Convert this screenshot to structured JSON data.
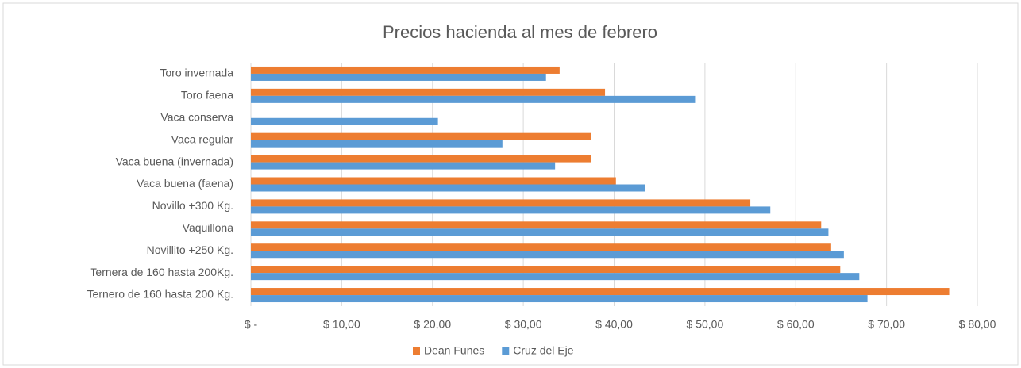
{
  "chart_data": {
    "type": "bar",
    "orientation": "horizontal",
    "title": "Precios hacienda al mes de febrero",
    "categories": [
      "Toro invernada",
      "Toro faena",
      "Vaca conserva",
      "Vaca regular",
      "Vaca buena (invernada)",
      "Vaca buena (faena)",
      "Novillo +300 Kg.",
      "Vaquillona",
      "Novillito +250 Kg.",
      "Ternera de 160 hasta 200Kg.",
      "Ternero de 160 hasta 200 Kg."
    ],
    "series": [
      {
        "name": "Dean Funes",
        "color": "#ed7d31",
        "values": [
          34.0,
          39.0,
          null,
          37.5,
          37.5,
          40.2,
          55.0,
          62.8,
          63.9,
          64.9,
          76.9
        ]
      },
      {
        "name": "Cruz del Eje",
        "color": "#5b9bd5",
        "values": [
          32.5,
          49.0,
          20.6,
          27.7,
          33.5,
          43.4,
          57.2,
          63.6,
          65.3,
          67.0,
          67.9
        ]
      }
    ],
    "xlim": [
      0,
      80
    ],
    "xticks": [
      {
        "value": 0,
        "label": "$ -"
      },
      {
        "value": 10,
        "label": "$ 10,00"
      },
      {
        "value": 20,
        "label": "$ 20,00"
      },
      {
        "value": 30,
        "label": "$ 30,00"
      },
      {
        "value": 40,
        "label": "$ 40,00"
      },
      {
        "value": 50,
        "label": "$ 50,00"
      },
      {
        "value": 60,
        "label": "$ 60,00"
      },
      {
        "value": 70,
        "label": "$ 70,00"
      },
      {
        "value": 80,
        "label": "$ 80,00"
      }
    ],
    "grid": true,
    "legend": "bottom"
  }
}
